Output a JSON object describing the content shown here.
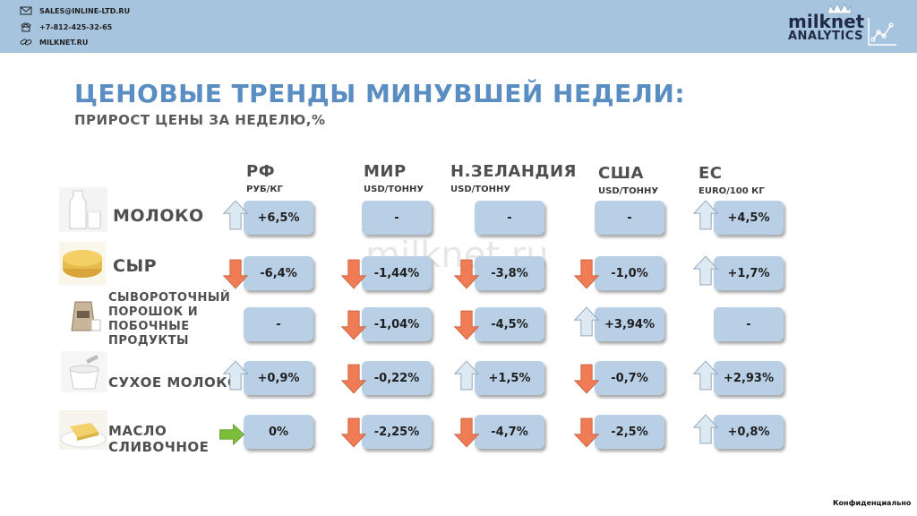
{
  "header": {
    "email": "SALES@INLINE-LTD.RU",
    "phone": "+7-812-425-32-65",
    "site": "MILKNET.RU",
    "logo_line1": "milknet",
    "logo_line2": "ANALYTICS"
  },
  "title": "ЦЕНОВЫЕ ТРЕНДЫ МИНУВШЕЙ НЕДЕЛИ:",
  "subtitle": "ПРИРОСТ ЦЕНЫ ЗА НЕДЕЛЮ,%",
  "watermark": "milknet.ru",
  "footer": "Конфиденциально",
  "colors": {
    "up": "#dde9f3",
    "down": "#f07c55",
    "flat": "#7cbd3a",
    "box": "#b8cfe6",
    "title": "#5a8dc2"
  },
  "columns": [
    {
      "name": "РФ",
      "unit": "РУБ/КГ"
    },
    {
      "name": "МИР",
      "unit": "USD/ТОННУ"
    },
    {
      "name": "Н.ЗЕЛАНДИЯ",
      "unit": "USD/ТОННУ"
    },
    {
      "name": "США",
      "unit": "USD/ТОННУ"
    },
    {
      "name": "ЕС",
      "unit": "EURO/100 КГ"
    }
  ],
  "rows": [
    {
      "label": [
        "МОЛОКО"
      ],
      "icon": "milk-icon",
      "cells": [
        {
          "value": "+6,5%",
          "trend": "up"
        },
        {
          "value": "-",
          "trend": "none"
        },
        {
          "value": "-",
          "trend": "none"
        },
        {
          "value": "-",
          "trend": "none"
        },
        {
          "value": "+4,5%",
          "trend": "up"
        }
      ]
    },
    {
      "label": [
        "СЫР"
      ],
      "icon": "cheese-icon",
      "cells": [
        {
          "value": "-6,4%",
          "trend": "down"
        },
        {
          "value": "-1,44%",
          "trend": "down"
        },
        {
          "value": "-3,8%",
          "trend": "down"
        },
        {
          "value": "-1,0%",
          "trend": "down"
        },
        {
          "value": "+1,7%",
          "trend": "up"
        }
      ]
    },
    {
      "label": [
        "СЫВОРОТОЧНЫЙ",
        "ПОРОШОК И",
        "ПОБОЧНЫЕ",
        "ПРОДУКТЫ"
      ],
      "icon": "whey-bag-icon",
      "cells": [
        {
          "value": "-",
          "trend": "none"
        },
        {
          "value": "-1,04%",
          "trend": "down"
        },
        {
          "value": "-4,5%",
          "trend": "down"
        },
        {
          "value": "+3,94%",
          "trend": "up"
        },
        {
          "value": "-",
          "trend": "none"
        }
      ]
    },
    {
      "label": [
        "СУХОЕ МОЛОКО"
      ],
      "icon": "milk-powder-icon",
      "cells": [
        {
          "value": "+0,9%",
          "trend": "up"
        },
        {
          "value": "-0,22%",
          "trend": "down"
        },
        {
          "value": "+1,5%",
          "trend": "up"
        },
        {
          "value": "-0,7%",
          "trend": "down"
        },
        {
          "value": "+2,93%",
          "trend": "up"
        }
      ]
    },
    {
      "label": [
        "МАСЛО",
        "СЛИВОЧНОЕ"
      ],
      "icon": "butter-icon",
      "cells": [
        {
          "value": "0%",
          "trend": "flat"
        },
        {
          "value": "-2,25%",
          "trend": "down"
        },
        {
          "value": "-4,7%",
          "trend": "down"
        },
        {
          "value": "-2,5%",
          "trend": "down"
        },
        {
          "value": "+0,8%",
          "trend": "up"
        }
      ]
    }
  ]
}
